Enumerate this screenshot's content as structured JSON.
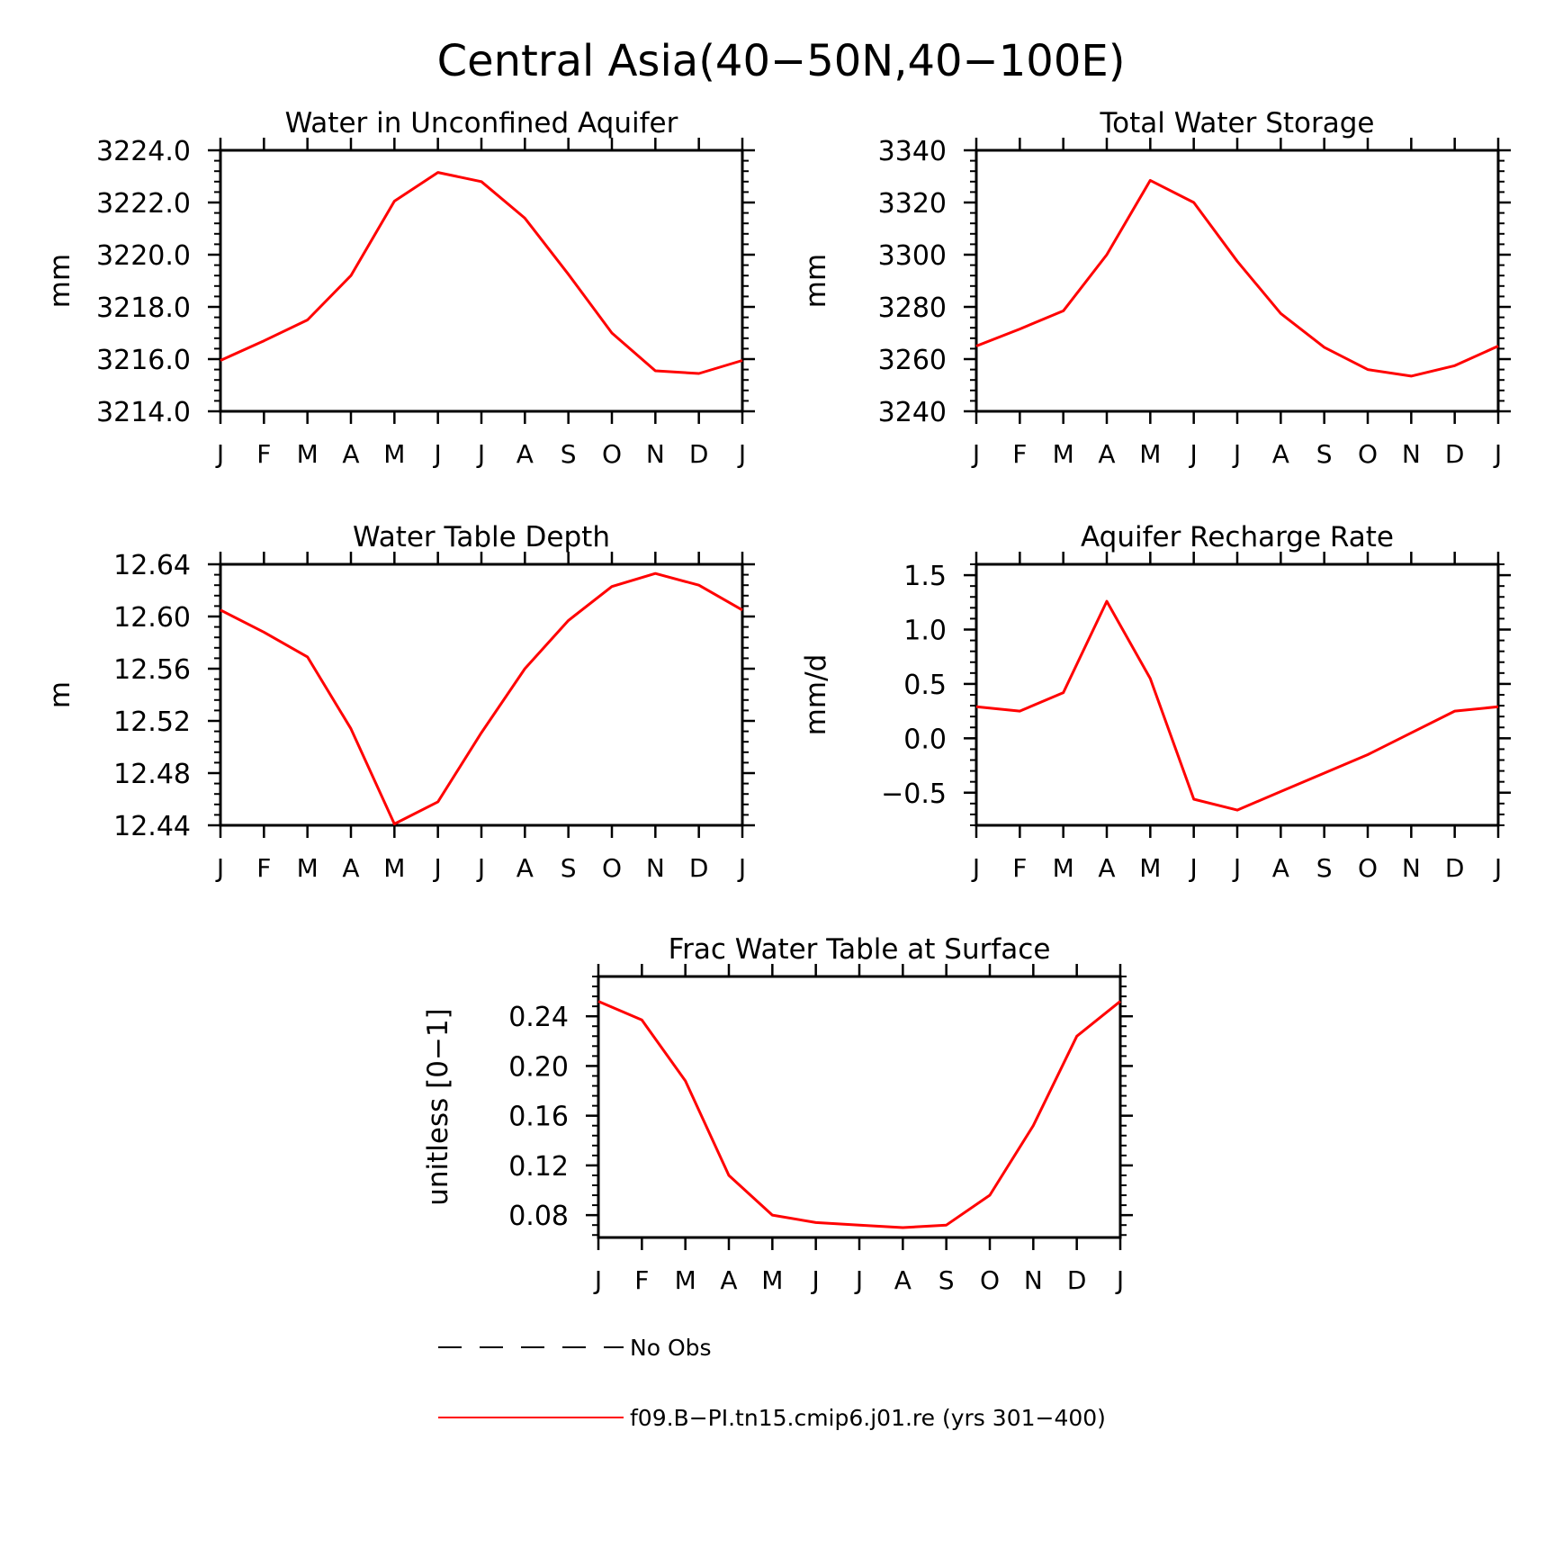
{
  "figure": {
    "title": "Central Asia(40−50N,40−100E)"
  },
  "colors": {
    "series": "#ff0000",
    "axes": "#000000"
  },
  "legend": {
    "no_obs_label": "No Obs",
    "model_label": "f09.B−PI.tn15.cmip6.j01.re (yrs 301−400)"
  },
  "chart_data": [
    {
      "type": "line",
      "title": "Water in Unconfined Aquifer",
      "ylabel": "mm",
      "categories": [
        "J",
        "F",
        "M",
        "A",
        "M",
        "J",
        "J",
        "A",
        "S",
        "O",
        "N",
        "D",
        "J"
      ],
      "ylim": [
        3214.0,
        3224.0
      ],
      "yticks": [
        3214.0,
        3216.0,
        3218.0,
        3220.0,
        3222.0,
        3224.0
      ],
      "ytick_labels": [
        "3214.0",
        "3216.0",
        "3218.0",
        "3220.0",
        "3222.0",
        "3224.0"
      ],
      "series": [
        {
          "name": "f09.B−PI.tn15.cmip6.j01.re (yrs 301−400)",
          "values": [
            3215.95,
            3216.7,
            3217.5,
            3219.2,
            3222.05,
            3223.15,
            3222.8,
            3221.4,
            3219.25,
            3217.0,
            3215.55,
            3215.45,
            3215.95
          ]
        }
      ]
    },
    {
      "type": "line",
      "title": "Total Water Storage",
      "ylabel": "mm",
      "categories": [
        "J",
        "F",
        "M",
        "A",
        "M",
        "J",
        "J",
        "A",
        "S",
        "O",
        "N",
        "D",
        "J"
      ],
      "ylim": [
        3240,
        3340
      ],
      "yticks": [
        3240,
        3260,
        3280,
        3300,
        3320,
        3340
      ],
      "ytick_labels": [
        "3240",
        "3260",
        "3280",
        "3300",
        "3320",
        "3340"
      ],
      "series": [
        {
          "name": "f09.B−PI.tn15.cmip6.j01.re (yrs 301−400)",
          "values": [
            3265,
            3271.5,
            3278.5,
            3300,
            3328.5,
            3320,
            3297.5,
            3277.5,
            3264.5,
            3256,
            3253.5,
            3257.5,
            3265
          ]
        }
      ]
    },
    {
      "type": "line",
      "title": "Water Table Depth",
      "ylabel": "m",
      "categories": [
        "J",
        "F",
        "M",
        "A",
        "M",
        "J",
        "J",
        "A",
        "S",
        "O",
        "N",
        "D",
        "J"
      ],
      "ylim": [
        12.44,
        12.64
      ],
      "yticks": [
        12.44,
        12.48,
        12.52,
        12.56,
        12.6,
        12.64
      ],
      "ytick_labels": [
        "12.44",
        "12.48",
        "12.52",
        "12.56",
        "12.60",
        "12.64"
      ],
      "series": [
        {
          "name": "f09.B−PI.tn15.cmip6.j01.re (yrs 301−400)",
          "values": [
            12.605,
            12.588,
            12.569,
            12.514,
            12.441,
            12.458,
            12.511,
            12.56,
            12.597,
            12.623,
            12.633,
            12.624,
            12.605
          ]
        }
      ]
    },
    {
      "type": "line",
      "title": "Aquifer Recharge Rate",
      "ylabel": "mm/d",
      "categories": [
        "J",
        "F",
        "M",
        "A",
        "M",
        "J",
        "J",
        "A",
        "S",
        "O",
        "N",
        "D",
        "J"
      ],
      "ylim": [
        -0.8,
        1.6
      ],
      "yticks": [
        -0.5,
        0.0,
        0.5,
        1.0,
        1.5
      ],
      "ytick_labels": [
        "−0.5",
        "0.0",
        "0.5",
        "1.0",
        "1.5"
      ],
      "series": [
        {
          "name": "f09.B−PI.tn15.cmip6.j01.re (yrs 301−400)",
          "values": [
            0.29,
            0.25,
            0.42,
            1.26,
            0.55,
            -0.56,
            -0.66,
            -0.49,
            -0.32,
            -0.15,
            0.05,
            0.25,
            0.29
          ]
        }
      ]
    },
    {
      "type": "line",
      "title": "Frac Water Table at Surface",
      "ylabel": "unitless [0−1]",
      "categories": [
        "J",
        "F",
        "M",
        "A",
        "M",
        "J",
        "J",
        "A",
        "S",
        "O",
        "N",
        "D",
        "J"
      ],
      "ylim": [
        0.062,
        0.272
      ],
      "yticks": [
        0.08,
        0.12,
        0.16,
        0.2,
        0.24
      ],
      "ytick_labels": [
        "0.08",
        "0.12",
        "0.16",
        "0.20",
        "0.24"
      ],
      "series": [
        {
          "name": "f09.B−PI.tn15.cmip6.j01.re (yrs 301−400)",
          "values": [
            0.252,
            0.237,
            0.188,
            0.112,
            0.08,
            0.074,
            0.072,
            0.07,
            0.072,
            0.096,
            0.152,
            0.224,
            0.252
          ]
        }
      ]
    }
  ]
}
